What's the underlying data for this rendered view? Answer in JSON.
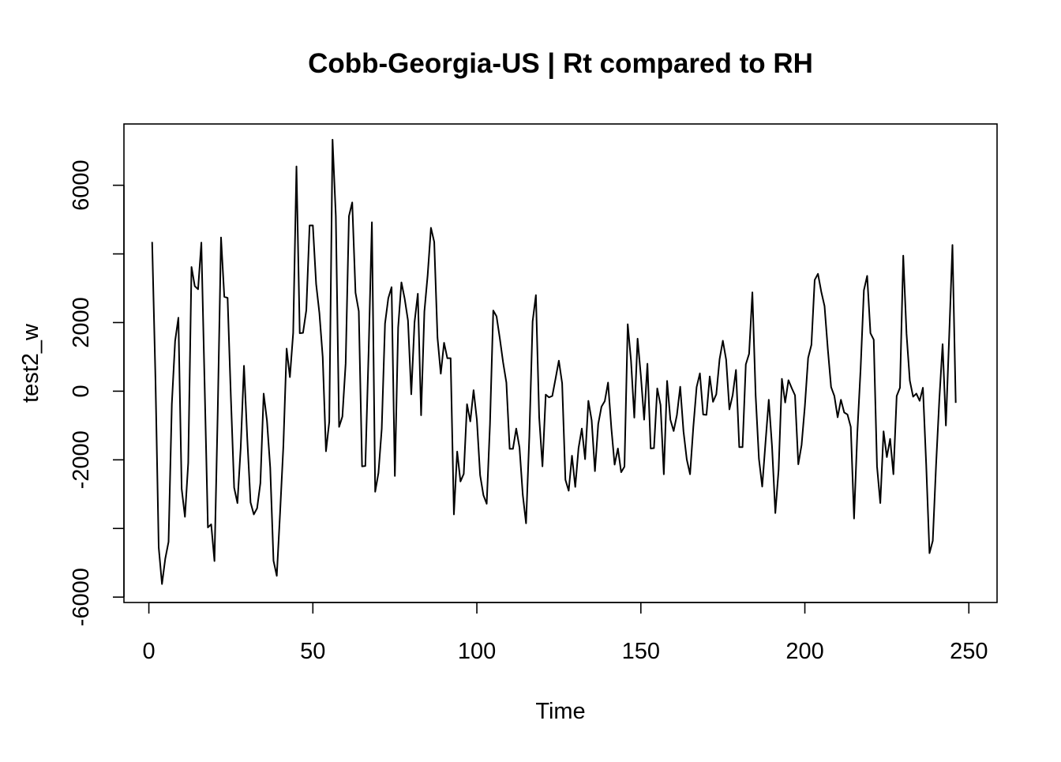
{
  "chart_data": {
    "type": "line",
    "title": "Cobb-Georgia-US | Rt compared to RH",
    "xlabel": "Time",
    "ylabel": "test2_w",
    "xlim": [
      -7.6,
      258.6
    ],
    "ylim": [
      -6157,
      7786
    ],
    "x_ticks": [
      0,
      50,
      100,
      150,
      200,
      250
    ],
    "y_ticks": [
      -6000,
      -2000,
      0,
      2000,
      6000
    ],
    "y_minor_ticks": [
      -4000,
      4000
    ],
    "grid": false,
    "legend": "none",
    "line_color": "#000000",
    "series": [
      {
        "x_start": 1,
        "values": [
          4350,
          400,
          -4550,
          -5620,
          -4880,
          -4390,
          -380,
          1460,
          2140,
          -2840,
          -3660,
          -2090,
          3620,
          3060,
          2970,
          4330,
          170,
          -3970,
          -3880,
          -4950,
          -570,
          4480,
          2750,
          2720,
          -170,
          -2810,
          -3260,
          -1650,
          740,
          -1380,
          -3240,
          -3590,
          -3410,
          -2680,
          -70,
          -850,
          -2230,
          -4940,
          -5380,
          -3550,
          -1610,
          1240,
          410,
          1700,
          6550,
          1690,
          1700,
          2360,
          4830,
          4830,
          3120,
          2270,
          1000,
          -1750,
          -890,
          7330,
          5100,
          -1040,
          -740,
          810,
          5100,
          5500,
          2870,
          2330,
          -2190,
          -2180,
          1150,
          4920,
          -2930,
          -2380,
          -1090,
          1970,
          2710,
          3030,
          -2470,
          1850,
          3170,
          2690,
          2060,
          -90,
          2010,
          2840,
          -700,
          2320,
          3380,
          4760,
          4350,
          1560,
          510,
          1410,
          960,
          960,
          -3590,
          -1760,
          -2630,
          -2410,
          -380,
          -880,
          30,
          -830,
          -2450,
          -3030,
          -3280,
          -960,
          2350,
          2180,
          1540,
          840,
          250,
          -1680,
          -1680,
          -1090,
          -1640,
          -3020,
          -3850,
          -1310,
          2030,
          2800,
          -760,
          -2190,
          -100,
          -180,
          -140,
          370,
          890,
          230,
          -2580,
          -2900,
          -1880,
          -2790,
          -1660,
          -1090,
          -1980,
          -280,
          -850,
          -2330,
          -960,
          -450,
          -290,
          250,
          -1070,
          -2140,
          -1670,
          -2360,
          -2200,
          1950,
          890,
          -770,
          1530,
          450,
          -830,
          800,
          -1670,
          -1660,
          80,
          -400,
          -2420,
          300,
          -830,
          -1160,
          -690,
          130,
          -1170,
          -1990,
          -2420,
          -1040,
          120,
          520,
          -680,
          -690,
          430,
          -310,
          -90,
          930,
          1470,
          920,
          -530,
          -110,
          620,
          -1630,
          -1630,
          780,
          1090,
          2880,
          -130,
          -1970,
          -2780,
          -1500,
          -250,
          -1620,
          -3550,
          -2290,
          360,
          -330,
          320,
          90,
          -120,
          -2130,
          -1570,
          -440,
          970,
          1350,
          3240,
          3420,
          2900,
          2480,
          1230,
          120,
          -140,
          -760,
          -250,
          -620,
          -680,
          -1040,
          -3710,
          -1210,
          650,
          2940,
          3360,
          1690,
          1500,
          -2190,
          -3260,
          -1170,
          -1920,
          -1390,
          -2420,
          -140,
          100,
          3950,
          1670,
          310,
          -160,
          -70,
          -280,
          100,
          -2150,
          -4720,
          -4360,
          -2160,
          -240,
          1370,
          -1000,
          1590,
          4260,
          -340
        ]
      }
    ]
  }
}
